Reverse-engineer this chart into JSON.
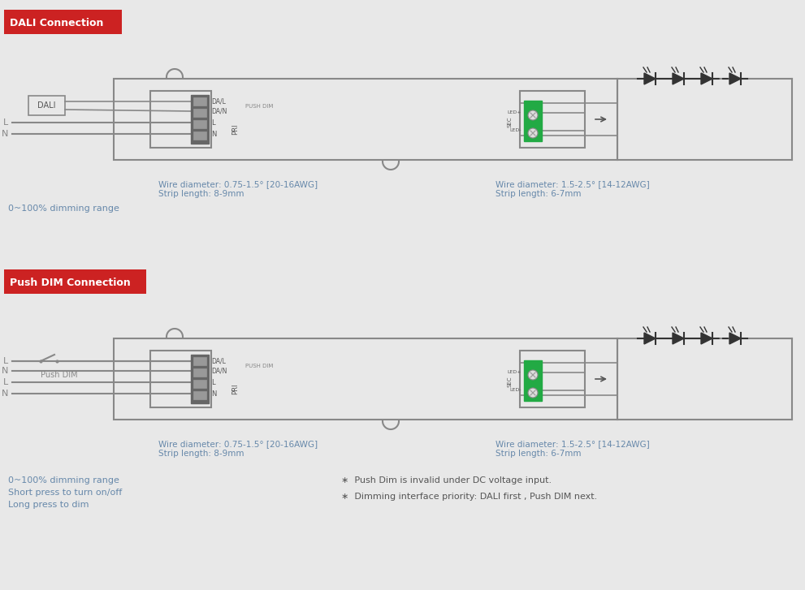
{
  "bg_color": "#e8e8e8",
  "title1": "DALI Connection",
  "title2": "Push DIM Connection",
  "title_bg": "#cc2222",
  "title_color": "#ffffff",
  "wire_color": "#888888",
  "body_outline": "#888888",
  "dark_connector": "#666666",
  "green_connector": "#22aa44",
  "text_color": "#6688aa",
  "note_color": "#555555",
  "wire_note1_left": "Wire diameter: 0.75-1.5° [20-16AWG]\nStrip length: 8-9mm",
  "wire_note1_right": "Wire diameter: 1.5-2.5° [14-12AWG]\nStrip length: 6-7mm",
  "dimming_note1": "0~100% dimming range",
  "dimming_note2": "0~100% dimming range\nShort press to turn on/off\nLong press to dim",
  "push_note1": "∗  Push Dim is invalid under DC voltage input.",
  "push_note2": "∗  Dimming interface priority: DALI first , Push DIM next."
}
